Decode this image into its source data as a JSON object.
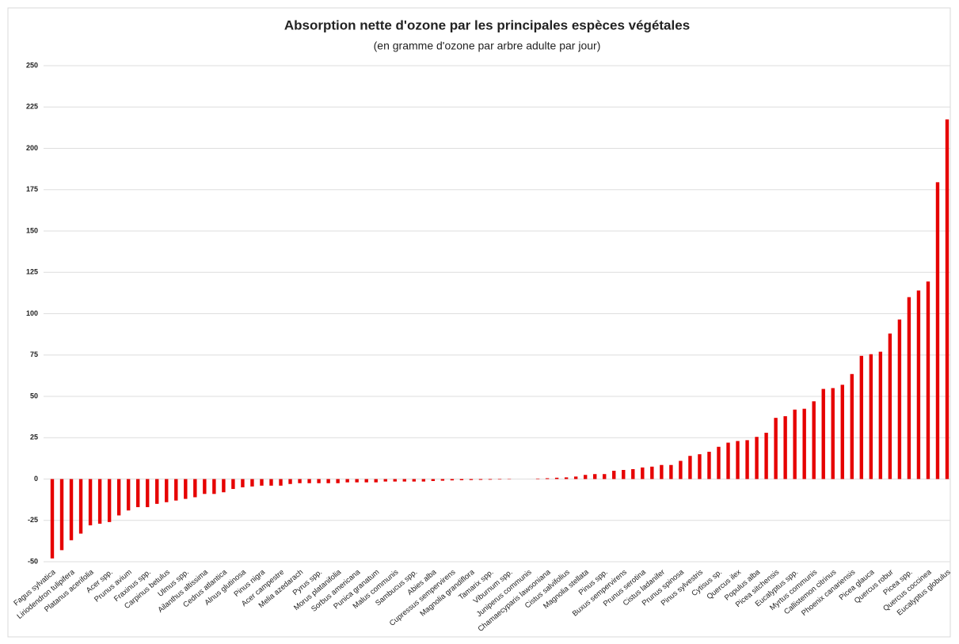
{
  "chart_data": {
    "type": "bar",
    "title": "Absorption nette d'ozone par les principales espèces végétales",
    "subtitle": "(en gramme d'ozone par arbre adulte par jour)",
    "color": "#e60000",
    "grid": true,
    "ylim": [
      -50,
      250
    ],
    "yticks": [
      -50,
      -25,
      0,
      25,
      50,
      75,
      100,
      125,
      150,
      175,
      200,
      225,
      250
    ],
    "categories": [
      "Fagus sylvatica",
      null,
      "Liriodendron tulipifera",
      null,
      "Platanus acerifolia",
      null,
      "Acer spp.",
      null,
      "Prunus avium",
      null,
      "Fraxinus spp.",
      null,
      "Carpinus betulus",
      null,
      "Ulmus spp.",
      null,
      "Ailanthus altissima",
      null,
      "Cedrus atlantica",
      null,
      "Alnus glutinosa",
      null,
      "Pinus nigra",
      null,
      "Acer campestre",
      null,
      "Melia azedarach",
      null,
      "Pyrus spp.",
      null,
      "Morus platanifolia",
      null,
      "Sorbus americana",
      null,
      "Punica granatum",
      null,
      "Malus communis",
      null,
      "Sambucus spp.",
      null,
      "Abies alba",
      null,
      "Cupressus sempervirens",
      null,
      "Magnolia grandiflora",
      null,
      "Tamarix spp.",
      null,
      "Viburnum spp.",
      null,
      "Juniperus communis",
      null,
      "Chamaecyparis lawsoniana",
      null,
      "Cistus salvifolius",
      null,
      "Magnolia stellata",
      null,
      "Pinus spp.",
      null,
      "Buxus sempervirens",
      null,
      "Prunus serotina",
      null,
      "Cistus ladanifer",
      null,
      "Prunus spinosa",
      null,
      "Pinus sylvestris",
      null,
      "Cytisus sp.",
      null,
      "Quercus ilex",
      null,
      "Populus alba",
      null,
      "Picea sitchensis",
      null,
      "Eucalyptus spp.",
      null,
      "Myrtus communis",
      null,
      "Callistemon citrinus",
      null,
      "Phoenix canariensis",
      null,
      "Picea glauca",
      null,
      "Quercus robur",
      null,
      "Picea spp.",
      null,
      "Quercus coccinea",
      null,
      "Eucalyptus globulus"
    ],
    "values": [
      -48,
      -43,
      -37,
      -33,
      -28,
      -27,
      -26,
      -22,
      -19,
      -17,
      -17,
      -15,
      -14,
      -13,
      -12,
      -11,
      -9,
      -9,
      -8,
      -6,
      -5,
      -4.5,
      -4,
      -4,
      -4,
      -3,
      -2.5,
      -2.5,
      -2.5,
      -2.5,
      -2.5,
      -2,
      -2,
      -2,
      -2,
      -1.5,
      -1.5,
      -1.5,
      -1.5,
      -1.5,
      -1.2,
      -1,
      -0.8,
      -0.7,
      -0.6,
      -0.5,
      -0.4,
      -0.3,
      -0.2,
      0,
      0,
      0.3,
      0.5,
      0.8,
      1,
      1.5,
      2.5,
      3,
      3,
      5,
      5.5,
      6,
      7,
      7.5,
      8.5,
      8.5,
      11,
      14,
      15,
      16.5,
      19.5,
      22,
      23,
      23.5,
      25.5,
      28,
      37,
      38,
      42,
      42.5,
      47,
      54.5,
      55,
      57,
      63.5,
      74.5,
      75.5,
      77,
      88,
      96.5,
      110,
      114,
      119.5,
      179.5,
      217.5
    ]
  }
}
